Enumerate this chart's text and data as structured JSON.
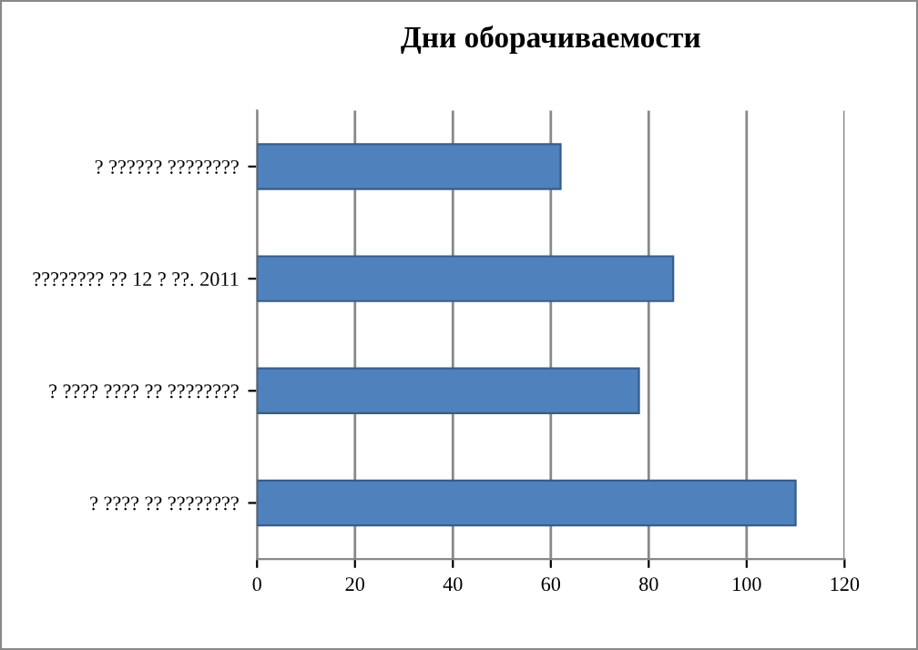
{
  "chart_data": {
    "type": "bar",
    "orientation": "horizontal",
    "title": "Дни оборачиваемости",
    "categories": [
      "? ?????? ????????",
      "???????? ?? 12 ? ??. 2011",
      "? ???? ???? ?? ????????",
      "? ???? ?? ????????"
    ],
    "values": [
      62,
      85,
      78,
      110
    ],
    "color": "#4f81bd",
    "xlim": [
      0,
      120
    ],
    "xticks": [
      0,
      20,
      40,
      60,
      80,
      100,
      120
    ],
    "grid": "x"
  }
}
